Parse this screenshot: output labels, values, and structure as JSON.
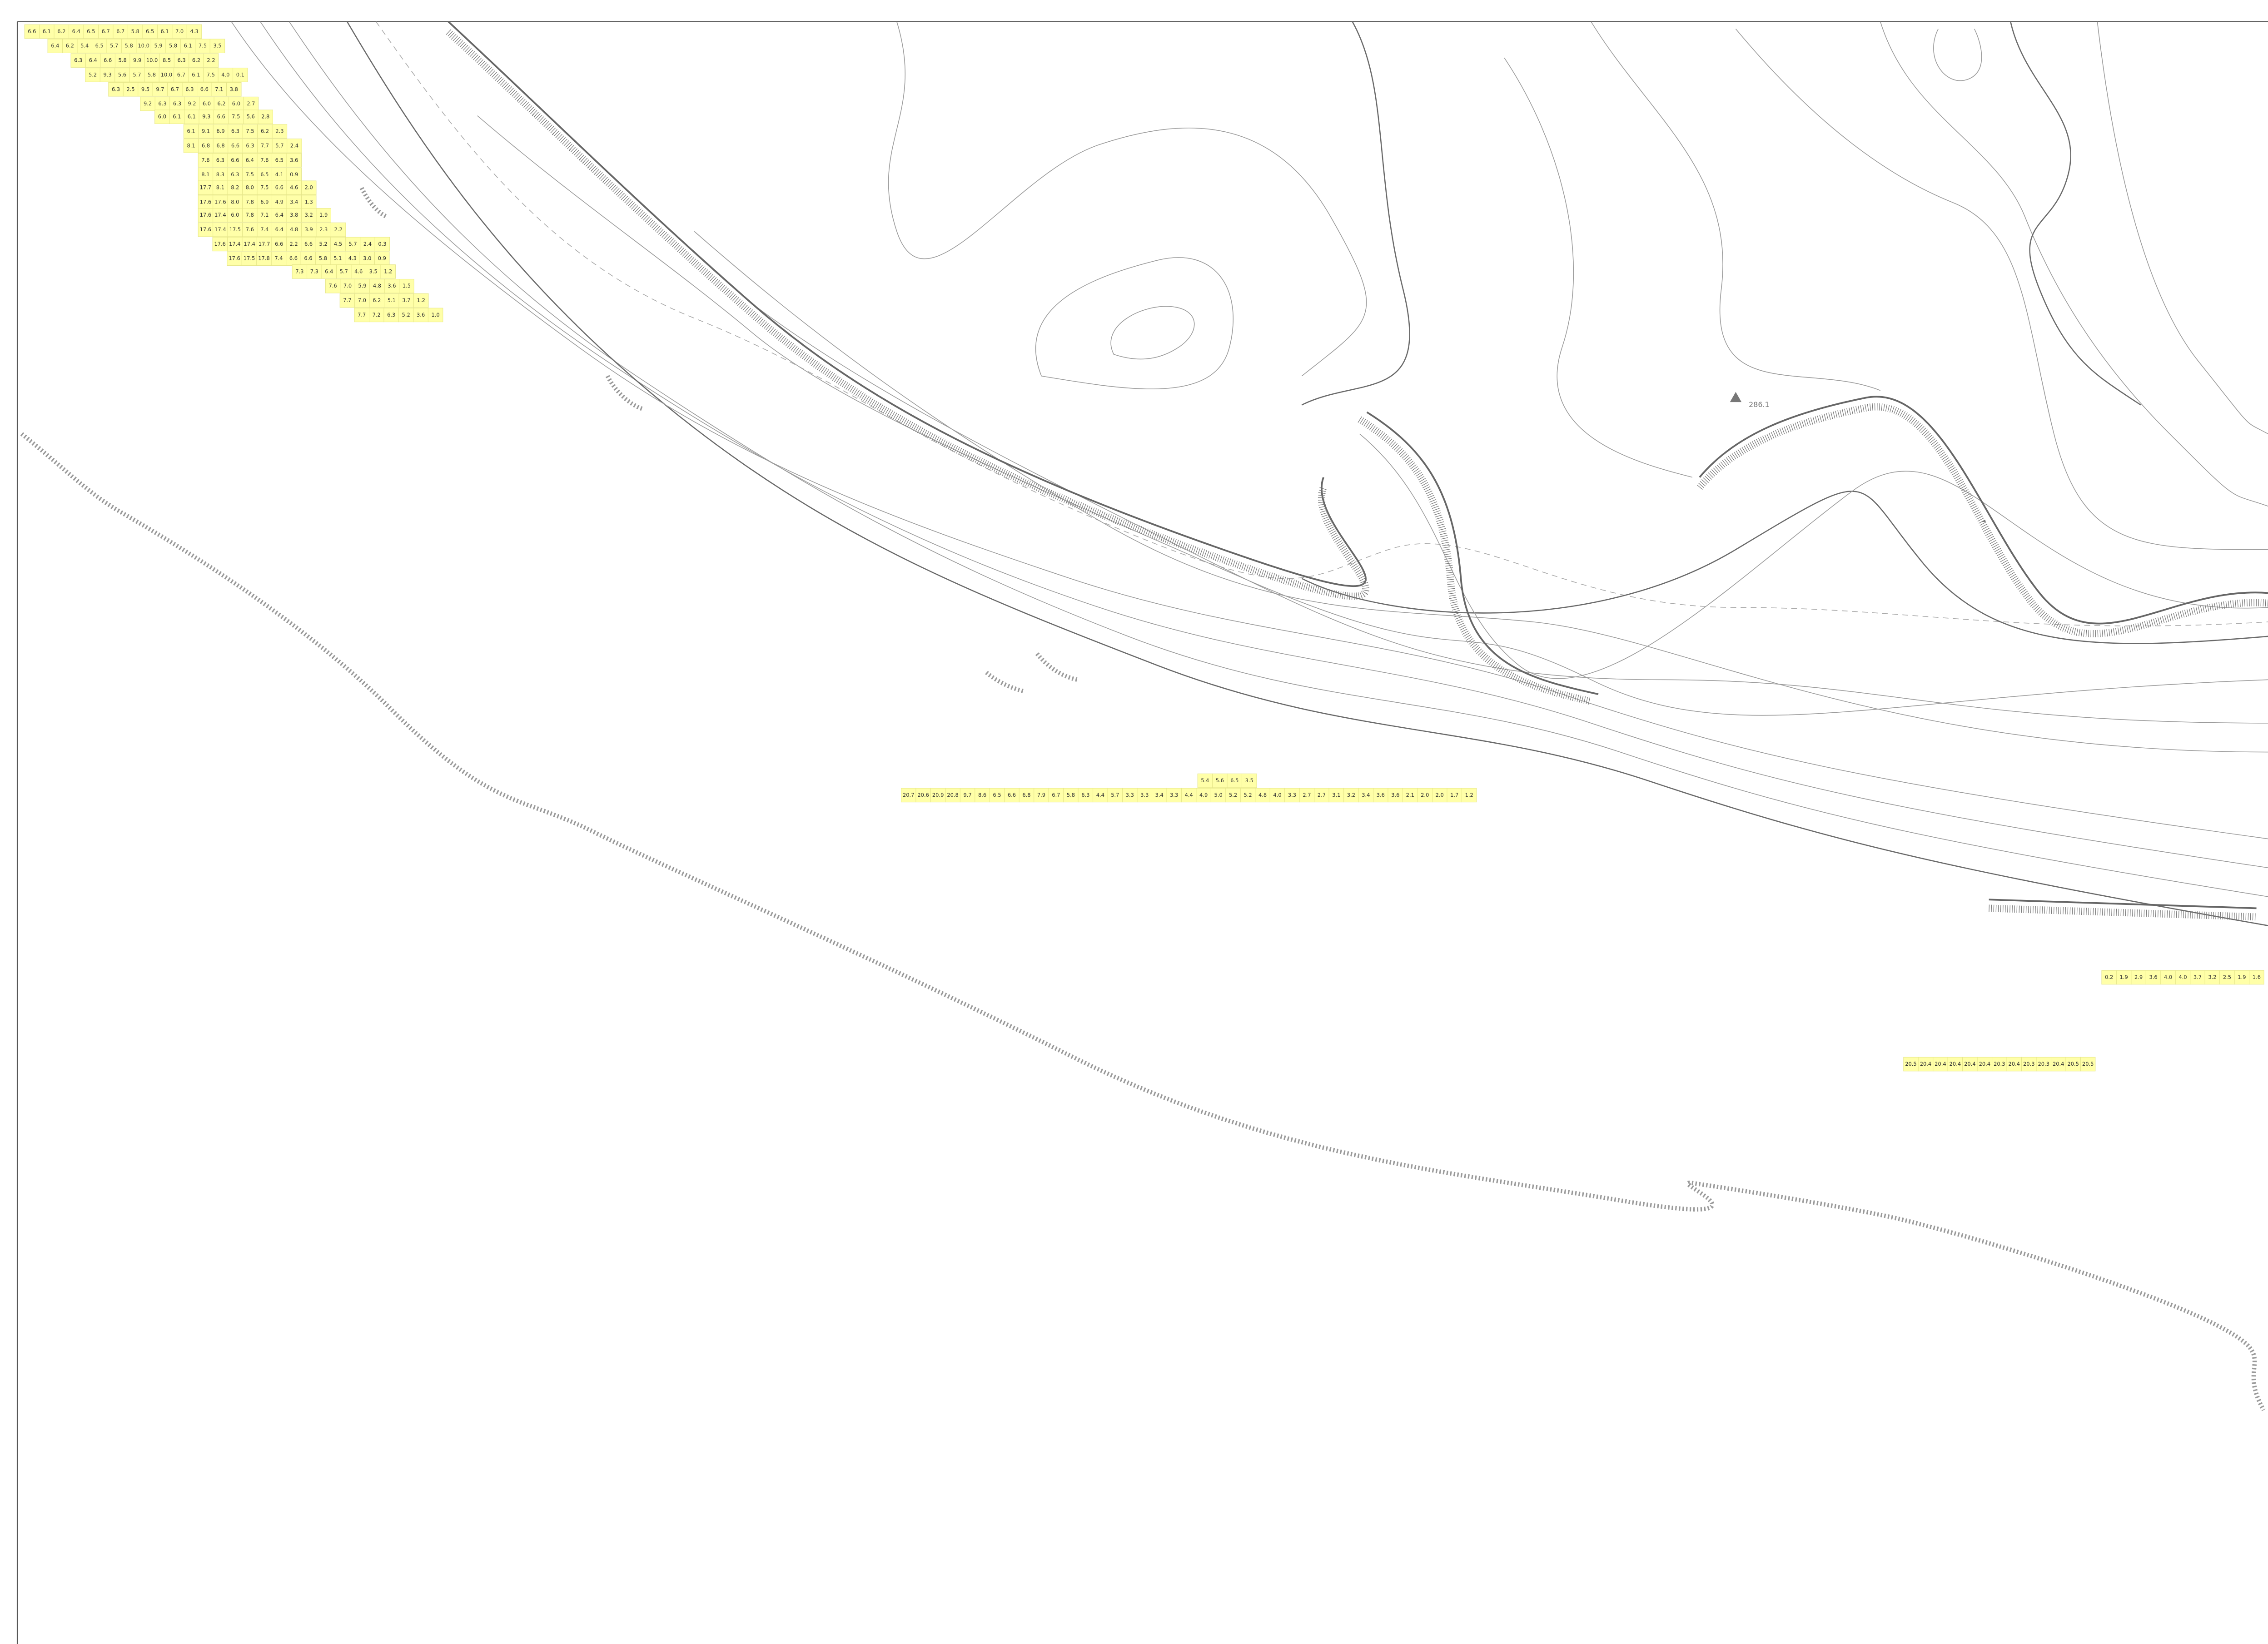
{
  "map": {
    "spot_height": "286.1",
    "grid_rows": [
      [
        "6.6",
        "6.1",
        "6.2",
        "6.4",
        "6.5",
        "6.7",
        "6.7",
        "5.8",
        "6.5",
        "6.1",
        "7.0",
        "4.3"
      ],
      [
        "6.4",
        "6.2",
        "5.4",
        "6.5",
        "5.7",
        "5.8",
        "10.0",
        "5.9",
        "5.8",
        "6.1",
        "7.5",
        "3.5"
      ],
      [
        "6.3",
        "6.4",
        "6.6",
        "5.8",
        "9.9",
        "10.0",
        "8.5",
        "6.3",
        "6.2",
        "2.2"
      ],
      [
        "5.2",
        "9.3",
        "5.6",
        "5.7",
        "5.8",
        "10.0",
        "6.7",
        "6.1",
        "7.5",
        "4.0",
        "0.1"
      ],
      [
        "6.3",
        "2.5",
        "9.5",
        "9.7",
        "6.7",
        "6.3",
        "6.6",
        "7.1",
        "3.8"
      ],
      [
        "9.2",
        "6.3",
        "6.3",
        "9.2",
        "6.0",
        "6.2",
        "6.0",
        "2.7"
      ],
      [
        "6.0",
        "6.1",
        "6.1",
        "9.3",
        "6.6",
        "7.5",
        "5.6",
        "2.8"
      ],
      [
        "6.1",
        "9.1",
        "6.9",
        "6.3",
        "7.5",
        "6.2",
        "2.3"
      ],
      [
        "8.1",
        "6.8",
        "6.8",
        "6.6",
        "6.3",
        "7.7",
        "5.7",
        "2.4"
      ],
      [
        "7.6",
        "6.3",
        "6.6",
        "6.4",
        "7.6",
        "6.5",
        "3.6"
      ],
      [
        "8.1",
        "8.3",
        "6.3",
        "7.5",
        "6.5",
        "4.1",
        "0.9"
      ],
      [
        "17.7",
        "8.1",
        "8.2",
        "8.0",
        "7.5",
        "6.6",
        "4.6",
        "2.0"
      ],
      [
        "17.6",
        "17.6",
        "8.0",
        "7.8",
        "6.9",
        "4.9",
        "3.4",
        "1.3"
      ],
      [
        "17.6",
        "17.4",
        "6.0",
        "7.8",
        "7.1",
        "6.4",
        "3.8",
        "3.2",
        "1.9"
      ],
      [
        "17.6",
        "17.4",
        "17.5",
        "7.6",
        "7.4",
        "6.4",
        "4.8",
        "3.9",
        "2.3",
        "2.2"
      ],
      [
        "17.6",
        "17.4",
        "17.4",
        "17.7",
        "6.6",
        "2.2",
        "6.6",
        "5.2",
        "4.5",
        "5.7",
        "2.4",
        "0.3"
      ],
      [
        "17.6",
        "17.5",
        "17.8",
        "7.4",
        "6.6",
        "6.6",
        "5.8",
        "5.1",
        "4.3",
        "3.0",
        "0.9"
      ],
      [
        "7.3",
        "7.3",
        "6.4",
        "5.7",
        "4.6",
        "3.5",
        "1.2"
      ],
      [
        "7.6",
        "7.0",
        "5.9",
        "4.8",
        "3.6",
        "1.5"
      ],
      [
        "7.7",
        "7.0",
        "6.2",
        "5.1",
        "3.7",
        "1.2"
      ],
      [
        "7.7",
        "7.2",
        "6.3",
        "5.2",
        "3.6",
        "1.0"
      ],
      [
        "5.4",
        "5.6",
        "6.5",
        "3.5"
      ],
      [
        "20.7",
        "20.6",
        "20.9",
        "20.8",
        "9.7",
        "8.6",
        "6.5",
        "6.6",
        "6.8",
        "7.9",
        "6.7",
        "5.8",
        "6.3",
        "4.4",
        "5.7",
        "3.3",
        "3.3",
        "3.4",
        "3.3",
        "4.4",
        "4.9",
        "5.0",
        "5.2",
        "5.2",
        "4.8",
        "4.0",
        "3.3",
        "2.7",
        "2.7",
        "3.1",
        "3.2",
        "3.4",
        "3.6",
        "3.6",
        "2.1",
        "2.0",
        "2.0",
        "1.7",
        "1.2"
      ],
      [
        "0.2",
        "1.9",
        "2.9",
        "3.6",
        "4.0",
        "4.0",
        "3.7",
        "3.2",
        "2.5",
        "1.9",
        "1.6"
      ],
      [
        "20.5",
        "20.4",
        "20.4",
        "20.4",
        "20.4",
        "20.4",
        "20.3",
        "20.4",
        "20.3",
        "20.3",
        "20.4",
        "20.5",
        "20.5"
      ]
    ]
  }
}
